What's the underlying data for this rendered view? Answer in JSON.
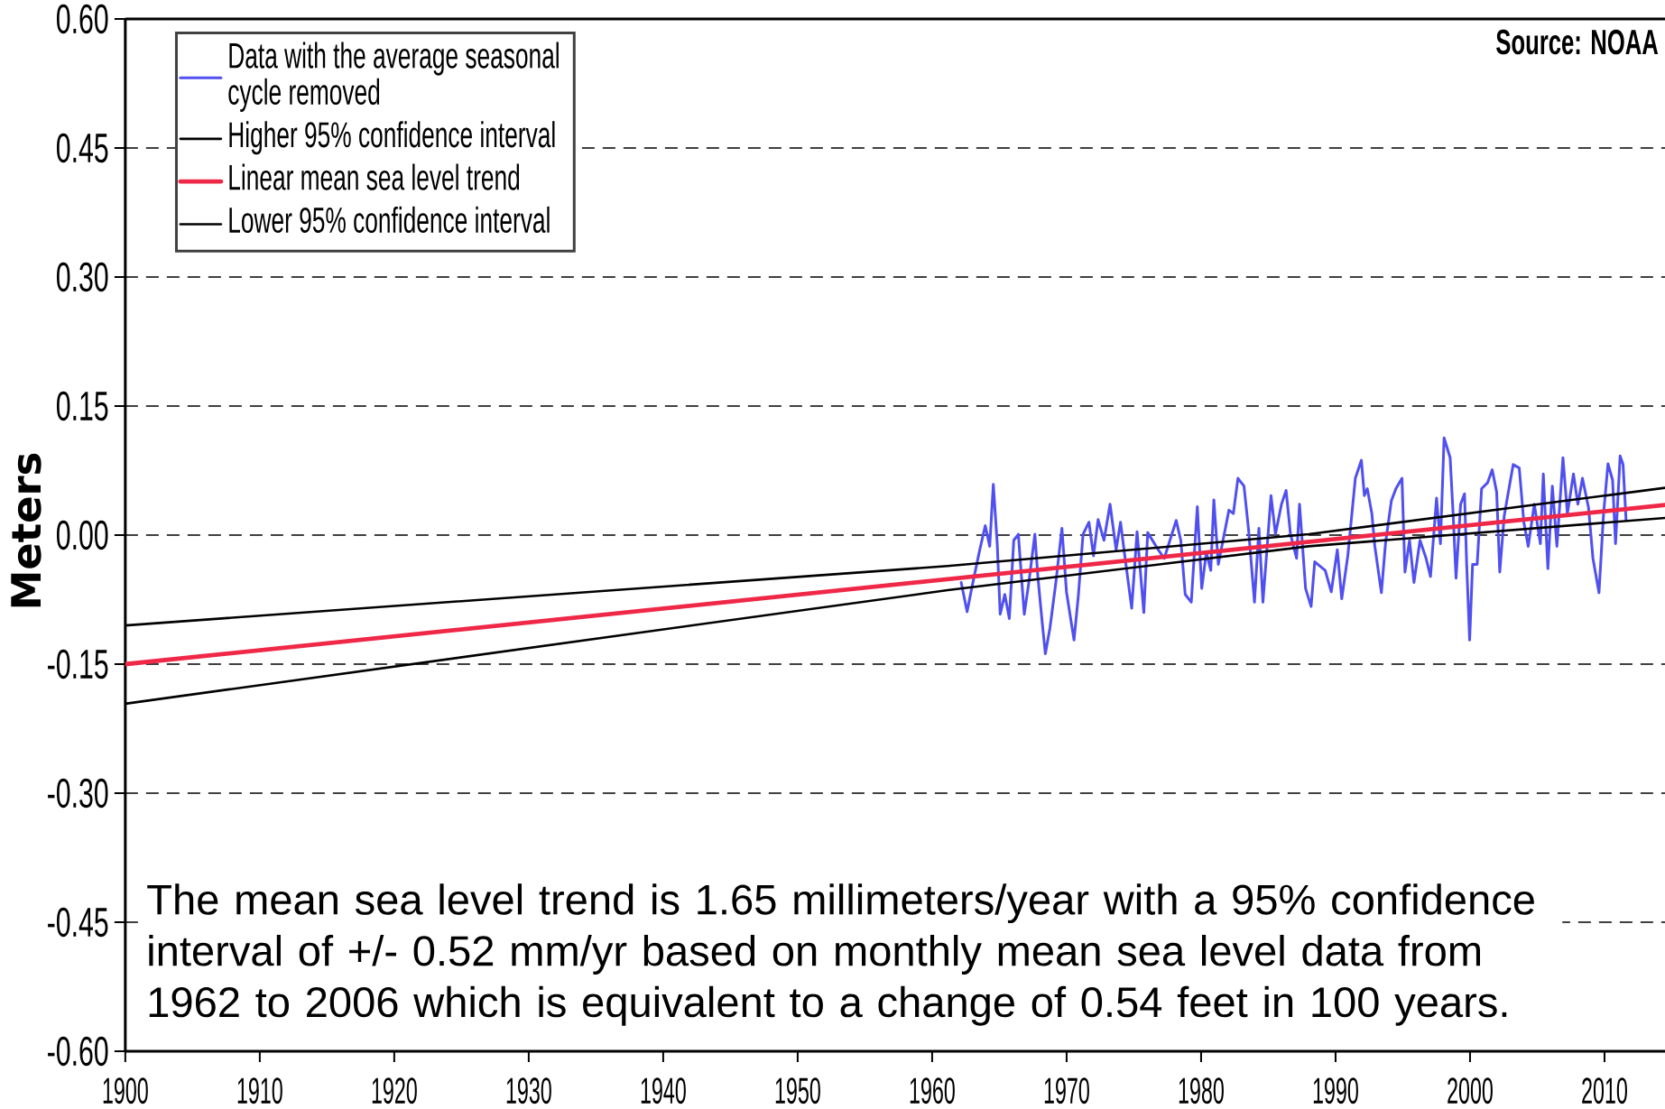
{
  "chart_data": {
    "type": "line",
    "ylabel": "Meters",
    "annotations": [
      "The mean sea level trend is 1.65 millimeters/year with a 95% confidence interval of +/- 0.52 mm/yr based on monthly mean sea level data from 1962 to 2006 which is equivalent to a change of 0.54 feet in 100 years.",
      "Source: NOAA"
    ],
    "xlim": [
      1900,
      2014.5
    ],
    "xticks": [
      1900,
      1910,
      1920,
      1930,
      1940,
      1950,
      1960,
      1970,
      1980,
      1990,
      2000,
      2010
    ],
    "ylim": [
      -0.6,
      0.6
    ],
    "yticks": [
      {
        "value": -0.6,
        "label": "-0.60"
      },
      {
        "value": -0.45,
        "label": "-0.45"
      },
      {
        "value": -0.3,
        "label": "-0.30"
      },
      {
        "value": -0.15,
        "label": "-0.15"
      },
      {
        "value": 0,
        "label": "0.00"
      },
      {
        "value": 0.15,
        "label": "0.15"
      },
      {
        "value": 0.3,
        "label": "0.30"
      },
      {
        "value": 0.45,
        "label": "0.45"
      },
      {
        "value": 0.6,
        "label": "0.60"
      }
    ],
    "grid": "y",
    "legend": "top left",
    "series": [
      {
        "name": "Data with the average seasonal cycle removed",
        "color": "#5050f0",
        "x": [
          1962.16,
          1962.6,
          1962.94,
          1963.5,
          1963.95,
          1964.28,
          1964.55,
          1964.84,
          1965.06,
          1965.4,
          1965.74,
          1966.07,
          1966.41,
          1966.85,
          1967.19,
          1967.64,
          1967.86,
          1968.2,
          1968.42,
          1968.76,
          1969.2,
          1969.65,
          1969.99,
          1970.55,
          1970.88,
          1971.22,
          1971.66,
          1972.0,
          1972.34,
          1972.78,
          1973.23,
          1973.68,
          1974.01,
          1974.35,
          1974.84,
          1975.24,
          1975.74,
          1976.03,
          1976.81,
          1977.26,
          1978.15,
          1978.49,
          1978.82,
          1979.27,
          1979.72,
          1980.05,
          1980.39,
          1980.72,
          1980.95,
          1981.28,
          1982.07,
          1982.4,
          1982.74,
          1983.19,
          1983.52,
          1983.97,
          1984.3,
          1984.6,
          1985.2,
          1985.53,
          1985.98,
          1986.32,
          1986.65,
          1987.1,
          1987.32,
          1987.77,
          1988.18,
          1988.45,
          1989.23,
          1989.68,
          1990.13,
          1990.46,
          1990.91,
          1991.47,
          1991.92,
          1992.14,
          1992.36,
          1992.7,
          1992.92,
          1993.41,
          1993.71,
          1994.15,
          1994.49,
          1994.94,
          1995.16,
          1995.5,
          1995.83,
          1996.28,
          1996.73,
          1997.06,
          1997.51,
          1997.8,
          1998.07,
          1998.52,
          1998.74,
          1998.96,
          1999.3,
          1999.59,
          1999.75,
          1999.97,
          2000.19,
          2000.53,
          2000.86,
          2001.31,
          2001.65,
          2001.98,
          2002.21,
          2002.54,
          2002.77,
          2003.21,
          2003.66,
          2004.0,
          2004.33,
          2004.78,
          2005.23,
          2005.45,
          2005.79,
          2006.12,
          2006.46,
          2006.91,
          2007.24,
          2007.69,
          2008.02,
          2008.36,
          2008.81,
          2009.14,
          2009.59,
          2009.93,
          2010.26,
          2010.6,
          2010.82,
          2011.16,
          2011.38,
          2011.6
        ],
        "values": [
          -0.055,
          -0.089,
          -0.062,
          -0.02,
          0.011,
          -0.013,
          0.059,
          -0.01,
          -0.092,
          -0.069,
          -0.097,
          -0.006,
          0.001,
          -0.092,
          -0.055,
          0.001,
          -0.048,
          -0.104,
          -0.138,
          -0.108,
          -0.055,
          0.008,
          -0.066,
          -0.122,
          -0.069,
          0.001,
          0.015,
          -0.024,
          0.018,
          -0.006,
          0.036,
          -0.017,
          0.015,
          -0.027,
          -0.085,
          0.004,
          -0.09,
          0.003,
          -0.017,
          -0.027,
          0.017,
          -0.006,
          -0.069,
          -0.078,
          0.033,
          -0.062,
          -0.02,
          -0.041,
          0.041,
          -0.034,
          0.029,
          0.025,
          0.066,
          0.057,
          0.008,
          -0.078,
          0.008,
          -0.078,
          0.046,
          0.001,
          0.036,
          0.052,
          0.001,
          -0.027,
          0.036,
          -0.062,
          -0.083,
          -0.031,
          -0.041,
          -0.066,
          -0.017,
          -0.074,
          -0.024,
          0.066,
          0.087,
          0.046,
          0.054,
          0.025,
          -0.013,
          -0.067,
          -0.01,
          0.04,
          0.054,
          0.066,
          -0.043,
          -0.006,
          -0.055,
          -0.006,
          -0.027,
          -0.048,
          0.043,
          -0.01,
          0.113,
          0.09,
          0.025,
          -0.05,
          0.036,
          0.048,
          -0.034,
          -0.122,
          -0.034,
          -0.034,
          0.054,
          0.061,
          0.076,
          0.05,
          -0.043,
          0.022,
          0.043,
          0.082,
          0.078,
          0.015,
          -0.013,
          0.036,
          -0.01,
          0.071,
          -0.039,
          0.057,
          -0.013,
          0.09,
          0.025,
          0.071,
          0.036,
          0.066,
          0.032,
          -0.027,
          -0.067,
          0.025,
          0.083,
          0.064,
          -0.01,
          0.092,
          0.082,
          0.018
        ]
      },
      {
        "name": "Higher 95% confidence interval",
        "color": "#000000",
        "x": [
          1900,
          1961.15,
          1988.0,
          2014.5
        ],
        "values": [
          -0.105,
          -0.036,
          0.001,
          0.055
        ]
      },
      {
        "name": "Linear mean sea level trend",
        "color": "#f02848",
        "x": [
          1900,
          2014.5
        ],
        "values": [
          -0.15,
          0.035
        ]
      },
      {
        "name": "Lower 95% confidence interval",
        "color": "#000000",
        "x": [
          1900,
          1961.15,
          1988.0,
          2014.5
        ],
        "values": [
          -0.196,
          -0.064,
          -0.013,
          0.02
        ]
      }
    ]
  }
}
